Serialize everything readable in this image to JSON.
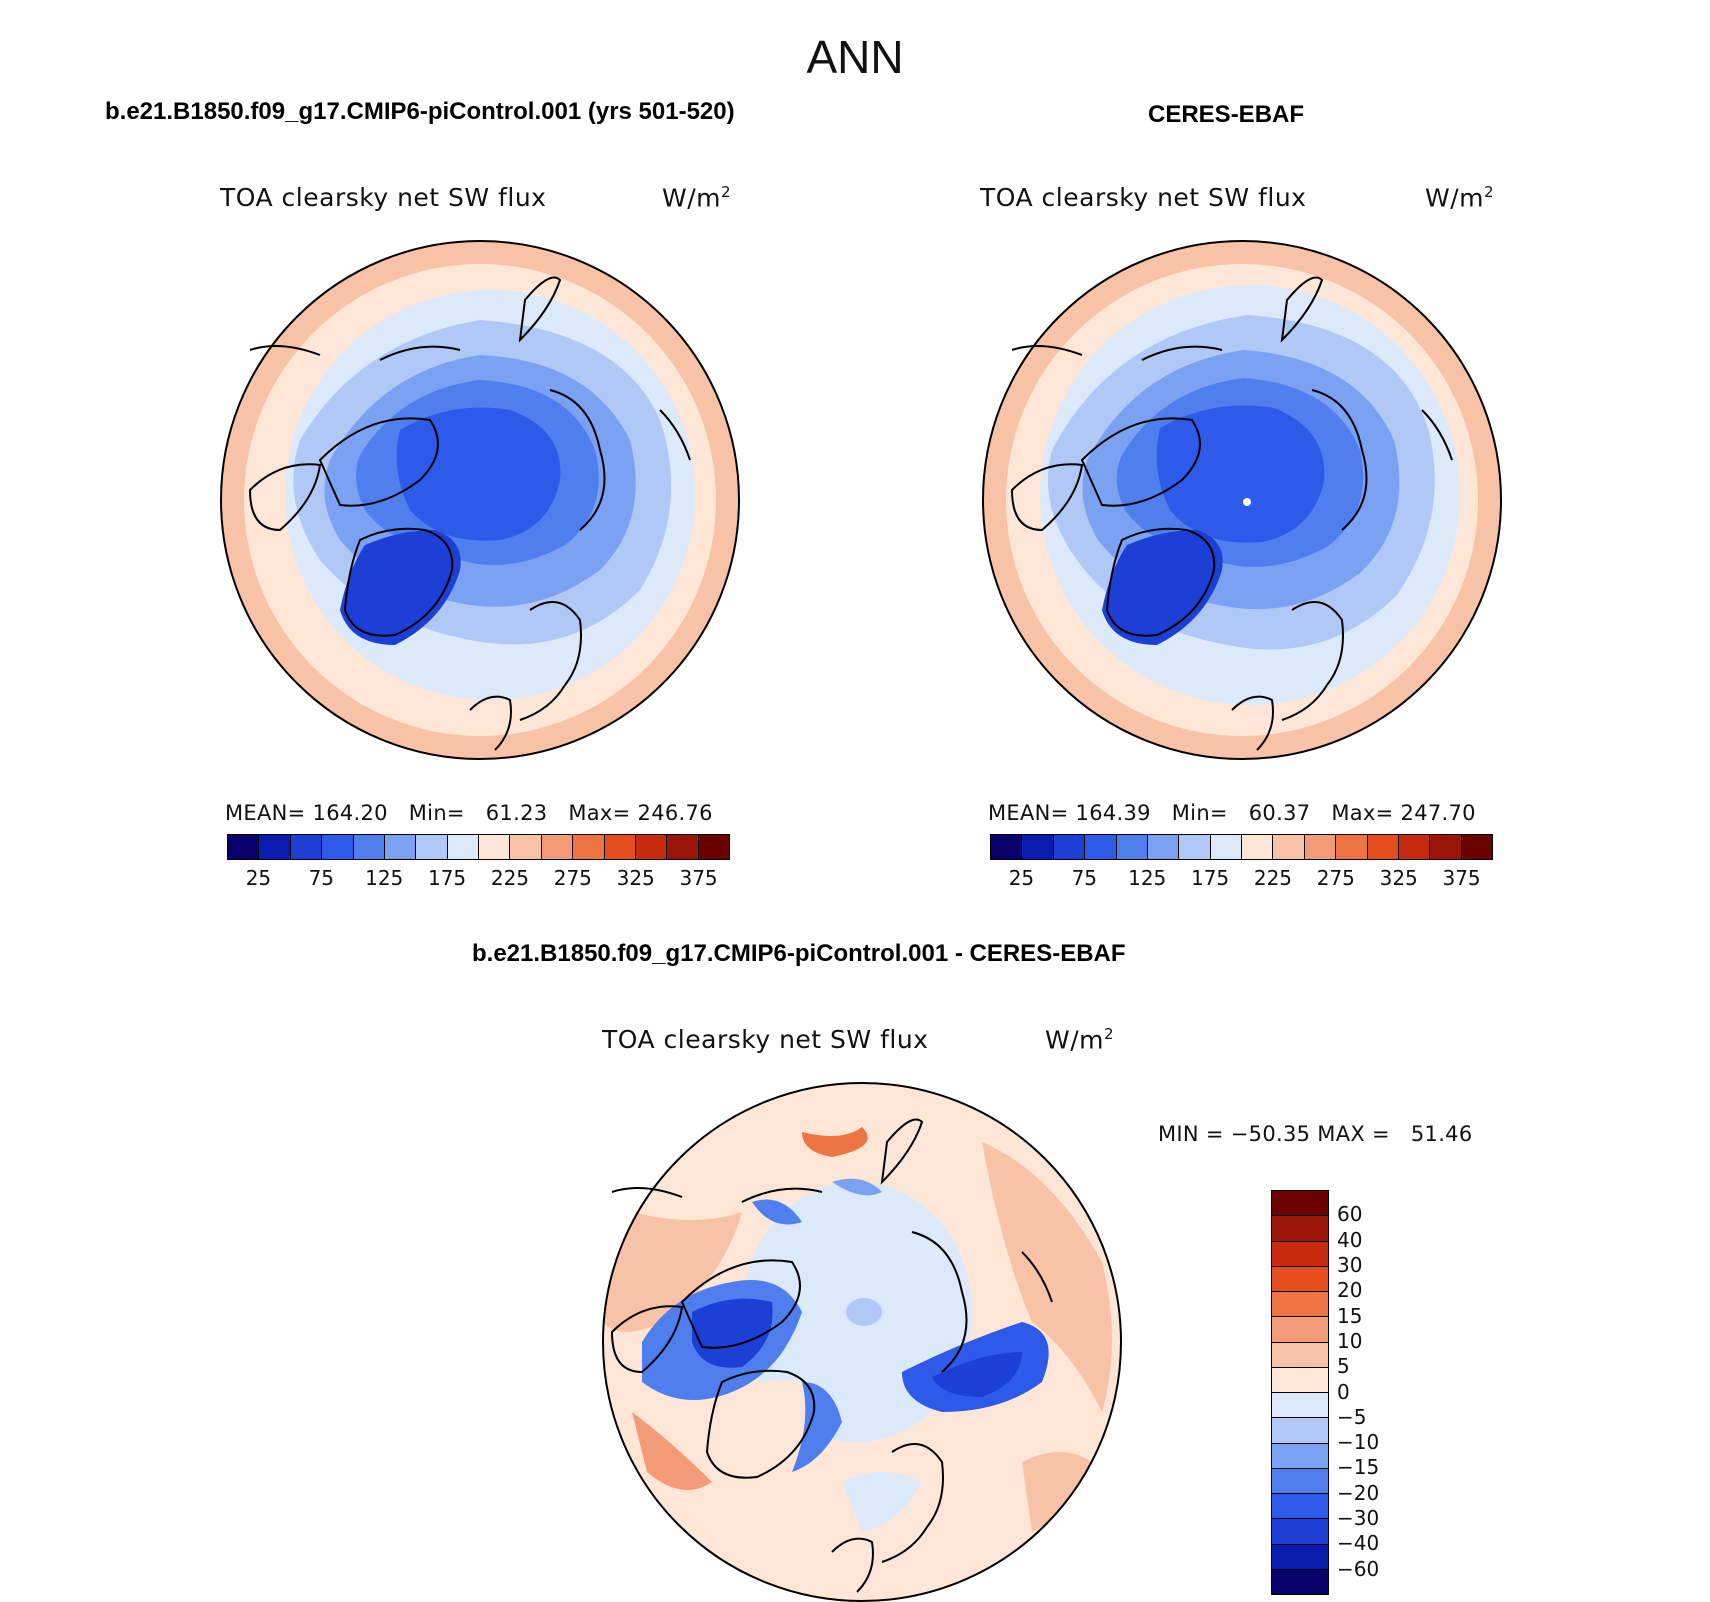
{
  "title": "ANN",
  "colors": {
    "abs_scale": [
      "#08006b",
      "#0a1bb0",
      "#1c3fd6",
      "#2d5ae8",
      "#4f7eee",
      "#7ba2f2",
      "#b0c8f6",
      "#dce9fb",
      "#fde6d6",
      "#f8c2a6",
      "#f39b76",
      "#ee7442",
      "#e44e1d",
      "#c82a10",
      "#9a1408",
      "#6b0000"
    ],
    "diff_scale": [
      "#6b0000",
      "#9a1408",
      "#c82a10",
      "#e44e1d",
      "#ee7442",
      "#f39b76",
      "#f8c2a6",
      "#fde6d6",
      "#dce9fb",
      "#b0c8f6",
      "#7ba2f2",
      "#4f7eee",
      "#2d5ae8",
      "#1c3fd6",
      "#0a1bb0",
      "#08006b"
    ]
  },
  "chart_data": [
    {
      "type": "heatmap",
      "projection": "north polar stereographic",
      "title": "b.e21.B1850.f09_g17.CMIP6-piControl.001 (yrs 501-520)",
      "variable": "TOA clearsky net SW flux",
      "units": "W/m",
      "units_exp": "2",
      "mean_label": "MEAN=",
      "mean": "164.20",
      "min_label": "Min=",
      "min": "61.23",
      "max_label": "Max=",
      "max": "246.76",
      "colorbar_levels": [
        25,
        50,
        75,
        100,
        125,
        150,
        175,
        200,
        225,
        250,
        275,
        300,
        325,
        350,
        375
      ],
      "colorbar_ticks": [
        "25",
        "75",
        "125",
        "175",
        "225",
        "275",
        "325",
        "375"
      ]
    },
    {
      "type": "heatmap",
      "projection": "north polar stereographic",
      "title": "CERES-EBAF",
      "variable": "TOA clearsky net SW flux",
      "units": "W/m",
      "units_exp": "2",
      "mean_label": "MEAN=",
      "mean": "164.39",
      "min_label": "Min=",
      "min": "60.37",
      "max_label": "Max=",
      "max": "247.70",
      "colorbar_levels": [
        25,
        50,
        75,
        100,
        125,
        150,
        175,
        200,
        225,
        250,
        275,
        300,
        325,
        350,
        375
      ],
      "colorbar_ticks": [
        "25",
        "75",
        "125",
        "175",
        "225",
        "275",
        "325",
        "375"
      ]
    },
    {
      "type": "heatmap",
      "projection": "north polar stereographic",
      "title": "b.e21.B1850.f09_g17.CMIP6-piControl.001 - CERES-EBAF",
      "variable": "TOA clearsky net SW flux",
      "units": "W/m",
      "units_exp": "2",
      "min_label": "MIN =",
      "min": "−50.35",
      "max_label": "MAX =",
      "max": "51.46",
      "colorbar_levels": [
        60,
        40,
        30,
        20,
        15,
        10,
        5,
        0,
        -5,
        -10,
        -15,
        -20,
        -30,
        -40,
        -60
      ],
      "colorbar_ticks": [
        "60",
        "40",
        "30",
        "20",
        "15",
        "10",
        "5",
        "0",
        "−5",
        "−10",
        "−15",
        "−20",
        "−30",
        "−40",
        "−60"
      ]
    }
  ]
}
